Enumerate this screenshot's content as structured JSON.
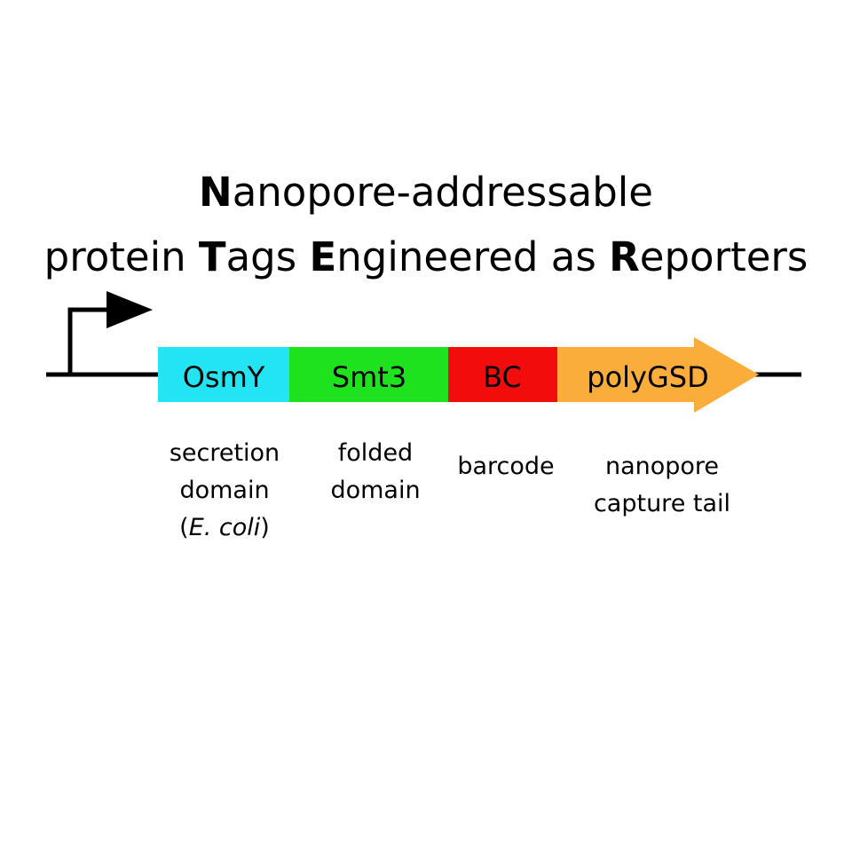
{
  "title": {
    "line1": [
      {
        "text": "N",
        "bold": true
      },
      {
        "text": "anopore-addressable",
        "bold": false
      }
    ],
    "line2": [
      {
        "text": "protein ",
        "bold": false
      },
      {
        "text": "T",
        "bold": true
      },
      {
        "text": "ags ",
        "bold": false
      },
      {
        "text": "E",
        "bold": true
      },
      {
        "text": "ngineered as ",
        "bold": false
      },
      {
        "text": "R",
        "bold": true
      },
      {
        "text": "eporters",
        "bold": false
      }
    ]
  },
  "segments": [
    {
      "label": "OsmY",
      "color": "#22e4f2"
    },
    {
      "label": "Smt3",
      "color": "#1fe21f"
    },
    {
      "label": "BC",
      "color": "#f20c0c"
    },
    {
      "label": "polyGSD",
      "color": "#fbad3c"
    }
  ],
  "descriptions": {
    "osmy": {
      "line1": "secretion",
      "line2": "domain",
      "line3_open": "(",
      "line3_italic": "E. coli",
      "line3_close": ")"
    },
    "smt3": {
      "line1": "folded",
      "line2": "domain"
    },
    "bc": {
      "line1": "barcode"
    },
    "polygsd": {
      "line1": "nanopore",
      "line2": "capture tail"
    }
  },
  "colors": {
    "line": "#000000"
  }
}
